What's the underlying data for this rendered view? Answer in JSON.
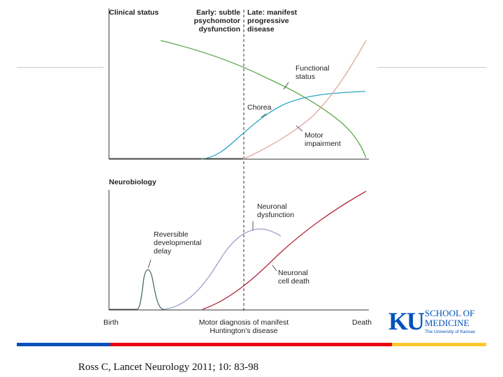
{
  "figure": {
    "top_panel": {
      "heading": "Clinical status",
      "phase_early": "Early: subtle\npsychomotor\ndysfunction",
      "phase_late": "Late: manifest\nprogressive\ndisease",
      "labels": {
        "functional": "Functional\nstatus",
        "chorea": "Chorea",
        "motor": "Motor\nimpairment"
      }
    },
    "bottom_panel": {
      "heading": "Neurobiology",
      "labels": {
        "reversible": "Reversible\ndevelopmental\ndelay",
        "dysfunction": "Neuronal\ndysfunction",
        "death": "Neuronal\ncell death"
      }
    },
    "x_axis": {
      "start": "Birth",
      "middle": "Motor diagnosis of manifest\nHuntington's disease",
      "end": "Death"
    },
    "colors": {
      "functional": "#5aa84a",
      "chorea": "#2aa6c4",
      "motor": "#e0a8a0",
      "reversible": "#4a6a6a",
      "dysfunction": "#9aa0c8",
      "death": "#b0283a"
    }
  },
  "logo": {
    "mark": "KU",
    "line1": "SCHOOL OF",
    "line2": "MEDICINE",
    "sub": "The University of Kansas"
  },
  "citation": "Ross C, Lancet Neurology 2011; 10: 83-98",
  "bar_colors": [
    "#0051ba",
    "#e8000d",
    "#ffc82d"
  ]
}
